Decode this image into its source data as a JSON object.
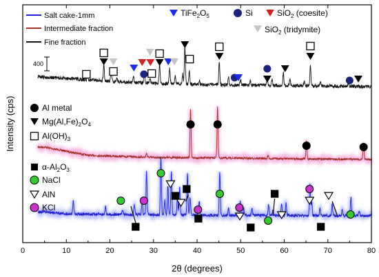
{
  "chart_data": {
    "type": "line",
    "xlabel": "2θ (degrees)",
    "ylabel": "Intensity (cps)",
    "xlim": [
      0,
      80
    ],
    "xticks": [
      0,
      10,
      20,
      30,
      40,
      50,
      60,
      70,
      80
    ],
    "scale_bar_label": "400",
    "series": [
      {
        "name": "Salt cake-1mm",
        "color": "#1f1fd6",
        "baseline": 314,
        "noise": 2.2,
        "bg": [
          [
            5,
            6
          ],
          [
            10,
            3
          ],
          [
            20,
            2
          ],
          [
            40,
            1
          ],
          [
            80,
            0
          ]
        ],
        "peaks": [
          [
            11.6,
            18
          ],
          [
            19.0,
            12
          ],
          [
            22.9,
            8
          ],
          [
            25.6,
            14
          ],
          [
            27.4,
            22
          ],
          [
            28.4,
            62
          ],
          [
            31.7,
            86
          ],
          [
            32.6,
            22
          ],
          [
            33.3,
            42
          ],
          [
            34.1,
            62
          ],
          [
            35.5,
            26
          ],
          [
            36.0,
            40
          ],
          [
            37.8,
            60
          ],
          [
            38.4,
            26
          ],
          [
            40.5,
            20
          ],
          [
            45.2,
            62
          ],
          [
            47.2,
            10
          ],
          [
            49.9,
            20
          ],
          [
            50.7,
            10
          ],
          [
            52.6,
            10
          ],
          [
            56.4,
            16
          ],
          [
            57.4,
            8
          ],
          [
            59.4,
            18
          ],
          [
            60.4,
            18
          ],
          [
            65.9,
            48
          ],
          [
            66.3,
            20
          ],
          [
            68.2,
            10
          ],
          [
            71.0,
            16
          ],
          [
            73.3,
            8
          ],
          [
            75.3,
            26
          ],
          [
            77.2,
            8
          ]
        ]
      },
      {
        "name": "Intermediate fraction",
        "color": "#a02d1e",
        "baseline": 232,
        "noise": 1.5,
        "bg": [
          [
            5,
            18
          ],
          [
            15,
            6
          ],
          [
            30,
            3
          ],
          [
            80,
            0
          ]
        ],
        "peaks": [
          [
            28.4,
            6
          ],
          [
            38.5,
            70
          ],
          [
            44.7,
            74
          ],
          [
            56.3,
            4
          ],
          [
            65.1,
            26
          ],
          [
            78.2,
            24
          ]
        ]
      },
      {
        "name": "Fine fraction",
        "color": "#111111",
        "baseline": 126,
        "noise": 2.6,
        "bg": [
          [
            4,
            14
          ],
          [
            15,
            10
          ],
          [
            25,
            6
          ],
          [
            40,
            3
          ],
          [
            80,
            0
          ]
        ],
        "peaks": [
          [
            14.9,
            6
          ],
          [
            18.6,
            22
          ],
          [
            20.3,
            12
          ],
          [
            21.6,
            6
          ],
          [
            25.4,
            10
          ],
          [
            27.9,
            18
          ],
          [
            29.2,
            8
          ],
          [
            31.4,
            26
          ],
          [
            33.7,
            22
          ],
          [
            35.0,
            12
          ],
          [
            36.7,
            14
          ],
          [
            37.2,
            56
          ],
          [
            38.2,
            20
          ],
          [
            40.5,
            6
          ],
          [
            45.1,
            34
          ],
          [
            47.2,
            12
          ],
          [
            50.0,
            8
          ],
          [
            52.2,
            6
          ],
          [
            56.1,
            12
          ],
          [
            57.2,
            8
          ],
          [
            59.8,
            18
          ],
          [
            61.3,
            10
          ],
          [
            64.6,
            8
          ],
          [
            66.0,
            28
          ],
          [
            68.3,
            6
          ],
          [
            74.8,
            6
          ]
        ]
      }
    ]
  },
  "legend": [
    {
      "label": "Salt cake-1mm",
      "color": "#1f1fd6"
    },
    {
      "label": "Intermediate fraction",
      "color": "#a02d1e"
    },
    {
      "label": "Fine fraction",
      "color": "#111111"
    }
  ],
  "phase_keys": {
    "tife": {
      "text": "TiFe",
      "sub": "2",
      "rest": "O",
      "sub2": "5"
    },
    "si": {
      "text": "Si"
    },
    "coesite": {
      "text": "SiO",
      "sub": "2",
      "rest": " (coesite)"
    },
    "tridymite": {
      "text": "SiO",
      "sub": "2",
      "rest": " (tridymite)"
    },
    "almetal": {
      "text": "Al metal"
    },
    "spinel": {
      "text": "Mg(Al,Fe)",
      "sub": "2",
      "rest": "O",
      "sub2": "4"
    },
    "aloh": {
      "text": "Al(OH)",
      "sub": "3"
    },
    "alumina": {
      "text": "α-Al",
      "sub": "2",
      "rest": "O",
      "sub2": "3"
    },
    "nacl": {
      "text": "NaCl"
    },
    "aln": {
      "text": "AlN"
    },
    "kcl": {
      "text": "KCl"
    }
  },
  "colors": {
    "tife": "#1c2cf0",
    "si": "#1a237e",
    "coesite": "#d42020",
    "tridymite": "#c4c4c4",
    "nacl": "#33cc33",
    "kcl": "#cc33cc",
    "intermediate_glow": "#f7b8e6",
    "blue_glow": "#b7c0ff"
  },
  "markers": [
    {
      "type": "square",
      "x": 14.6,
      "y": 108
    },
    {
      "type": "square",
      "x": 18.6,
      "y": 77
    },
    {
      "type": "tri",
      "x": 18.6,
      "y": 90
    },
    {
      "type": "tri-gray",
      "x": 20.8,
      "y": 90
    },
    {
      "type": "square",
      "x": 20.8,
      "y": 104
    },
    {
      "type": "tri-blue",
      "x": 25.5,
      "y": 99
    },
    {
      "type": "tri-red",
      "x": 27.4,
      "y": 91
    },
    {
      "type": "circle-navy",
      "x": 27.8,
      "y": 108
    },
    {
      "type": "tri-gray",
      "x": 29.2,
      "y": 76
    },
    {
      "type": "tri-red",
      "x": 29.3,
      "y": 91
    },
    {
      "type": "square",
      "x": 29.6,
      "y": 107
    },
    {
      "type": "square",
      "x": 31.4,
      "y": 78
    },
    {
      "type": "tri",
      "x": 31.4,
      "y": 91
    },
    {
      "type": "tri-blue",
      "x": 33.4,
      "y": 90
    },
    {
      "type": "tri-gray",
      "x": 34.8,
      "y": 90
    },
    {
      "type": "tri",
      "x": 37.2,
      "y": 65
    },
    {
      "type": "square",
      "x": 38.3,
      "y": 86
    },
    {
      "type": "square",
      "x": 45.1,
      "y": 68
    },
    {
      "type": "tri",
      "x": 45.1,
      "y": 82
    },
    {
      "type": "circle-navy",
      "x": 48.6,
      "y": 113
    },
    {
      "type": "tri-blue",
      "x": 49.5,
      "y": 113
    },
    {
      "type": "circle-navy",
      "x": 56.1,
      "y": 100
    },
    {
      "type": "tri",
      "x": 56.1,
      "y": 115
    },
    {
      "type": "tri",
      "x": 60.2,
      "y": 100
    },
    {
      "type": "square",
      "x": 66.0,
      "y": 67
    },
    {
      "type": "tri",
      "x": 66.0,
      "y": 82
    },
    {
      "type": "circle-navy",
      "x": 75.0,
      "y": 117
    },
    {
      "type": "tri",
      "x": 77.0,
      "y": 115
    },
    {
      "type": "circle",
      "x": 38.5,
      "y": 181
    },
    {
      "type": "circle",
      "x": 44.7,
      "y": 181
    },
    {
      "type": "circle",
      "x": 65.1,
      "y": 212
    },
    {
      "type": "circle",
      "x": 78.2,
      "y": 214
    },
    {
      "type": "circle-green",
      "x": 22.5,
      "y": 292
    },
    {
      "type": "circle-purple",
      "x": 27.8,
      "y": 292
    },
    {
      "type": "circle-green",
      "x": 31.7,
      "y": 252
    },
    {
      "type": "tri-open",
      "x": 33.9,
      "y": 268
    },
    {
      "type": "square",
      "x": 35.0,
      "y": 285
    },
    {
      "type": "tri-open",
      "x": 36.3,
      "y": 295
    },
    {
      "type": "square",
      "x": 37.6,
      "y": 275
    },
    {
      "type": "circle-purple",
      "x": 40.2,
      "y": 305
    },
    {
      "type": "square",
      "x": 40.3,
      "y": 318
    },
    {
      "type": "circle-green",
      "x": 45.2,
      "y": 282
    },
    {
      "type": "circle-purple",
      "x": 49.7,
      "y": 302
    },
    {
      "type": "tri-open",
      "x": 49.8,
      "y": 315
    },
    {
      "type": "square",
      "x": 52.3,
      "y": 331
    },
    {
      "type": "circle-green",
      "x": 56.3,
      "y": 321
    },
    {
      "type": "square",
      "x": 57.8,
      "y": 282
    },
    {
      "type": "tri-open",
      "x": 59.4,
      "y": 313
    },
    {
      "type": "circle-purple",
      "x": 65.8,
      "y": 275
    },
    {
      "type": "tri-open",
      "x": 65.8,
      "y": 292
    },
    {
      "type": "square",
      "x": 68.4,
      "y": 330
    },
    {
      "type": "tri-open",
      "x": 70.2,
      "y": 285
    },
    {
      "type": "circle-green",
      "x": 75.2,
      "y": 312
    },
    {
      "type": "square",
      "x": 25.9,
      "y": 330
    }
  ],
  "leaders": [
    [
      24.8,
      300,
      26.0,
      326
    ],
    [
      36.0,
      292,
      35.7,
      303
    ],
    [
      38.0,
      283,
      37.4,
      293
    ],
    [
      57.8,
      289,
      57.4,
      314
    ],
    [
      71.0,
      293,
      72.2,
      314
    ]
  ]
}
